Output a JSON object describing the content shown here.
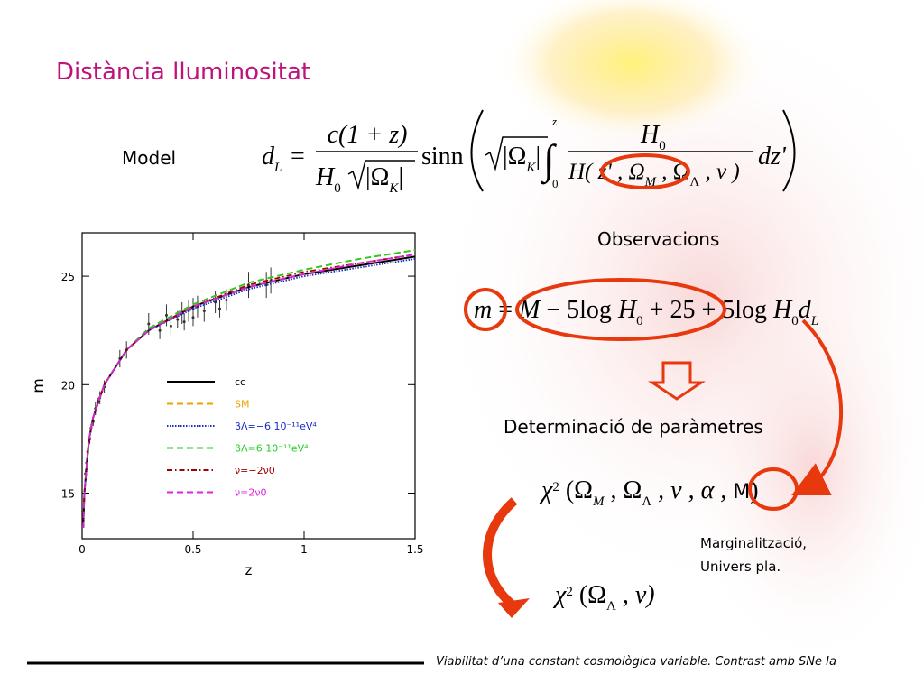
{
  "title": "Distància lluminositat",
  "model_label": "Model",
  "model_formula": {
    "lhs": "d",
    "lhs_sub": "L",
    "equals": "=",
    "num": "c(1 + z)",
    "den": "H",
    "den_sub": "0",
    "den_root": "|Ω",
    "den_root_sub": "K",
    "den_root_end": "|",
    "func": "sinn",
    "root": "|Ω",
    "root_sub": "K",
    "root_end": "|",
    "integral": "∫",
    "upper": "z",
    "lower": "0",
    "inner_num": "H",
    "inner_num_sub": "0",
    "inner_den": "H( z' , Ω",
    "inner_den_sub1": "M",
    "inner_den_mid": " , Ω",
    "inner_den_sub2": "Λ",
    "inner_den_end": " , ν )",
    "differential": "dz'"
  },
  "observations_label": "Observacions",
  "magnitude_formula": {
    "a": "m",
    "b": " = ",
    "c": "M",
    "d": " − 5log ",
    "e": "H",
    "e_sub": "0",
    "f": " + 25 + 5log ",
    "g": "H",
    "g_sub": "0",
    "h": "d",
    "h_sub": "L"
  },
  "parameters_label": "Determinació de paràmetres",
  "chi_formula": {
    "chi": "χ",
    "sup": "2",
    "a": " (Ω",
    "a_sub": "M",
    "b": " , Ω",
    "b_sub": "Λ",
    "c": " , ν , α , ",
    "m": "M",
    "end": ")"
  },
  "marginalization_note": [
    "Marginalització,",
    "Univers pla."
  ],
  "reduced_chi_formula": {
    "chi": "χ",
    "sup": "2",
    "a": " (Ω",
    "a_sub": "Λ",
    "b": " , ν)"
  },
  "plot": {
    "xlabel": "z",
    "ylabel": "m",
    "xlim": [
      0,
      1.5
    ],
    "ylim": [
      12.9,
      27
    ],
    "xticks": [
      0,
      0.5,
      1,
      1.5
    ],
    "yticks": [
      15,
      20,
      25
    ],
    "x": [
      0.005,
      0.01,
      0.03,
      0.05,
      0.1,
      0.2,
      0.3,
      0.5,
      0.75,
      1.0,
      1.25,
      1.5
    ],
    "series": [
      {
        "name": "cc",
        "color": "#000000",
        "dash": "solid",
        "values": [
          13.4,
          15.0,
          17.4,
          18.5,
          20.0,
          21.6,
          22.5,
          23.6,
          24.5,
          25.1,
          25.5,
          25.9
        ]
      },
      {
        "name": "SM",
        "color": "#f0a000",
        "dash": "dashed",
        "values": [
          13.4,
          15.0,
          17.4,
          18.5,
          20.0,
          21.6,
          22.6,
          23.7,
          24.7,
          25.3,
          25.8,
          26.2
        ]
      },
      {
        "name": "βΛ=−6  10⁻¹¹eV⁴",
        "color": "#1a2cc0",
        "dash": "dotted",
        "values": [
          13.4,
          15.0,
          17.4,
          18.5,
          20.0,
          21.6,
          22.5,
          23.5,
          24.4,
          25.0,
          25.4,
          25.8
        ]
      },
      {
        "name": "βΛ=6  10⁻¹¹eV⁴",
        "color": "#22cc22",
        "dash": "dashed",
        "values": [
          13.4,
          15.0,
          17.4,
          18.5,
          20.0,
          21.6,
          22.6,
          23.7,
          24.7,
          25.3,
          25.8,
          26.2
        ]
      },
      {
        "name": "ν=−2ν0",
        "color": "#a00000",
        "dash": "dashdot",
        "values": [
          13.4,
          15.0,
          17.4,
          18.5,
          20.0,
          21.6,
          22.5,
          23.6,
          24.6,
          25.2,
          25.6,
          26.0
        ]
      },
      {
        "name": "ν=2ν0",
        "color": "#e020e0",
        "dash": "dashed",
        "values": [
          13.4,
          15.0,
          17.4,
          18.5,
          20.0,
          21.6,
          22.5,
          23.6,
          24.5,
          25.1,
          25.6,
          26.0
        ]
      }
    ],
    "points": {
      "x": [
        0.015,
        0.02,
        0.025,
        0.03,
        0.035,
        0.04,
        0.05,
        0.06,
        0.07,
        0.08,
        0.1,
        0.17,
        0.2,
        0.3,
        0.35,
        0.38,
        0.4,
        0.43,
        0.45,
        0.46,
        0.48,
        0.5,
        0.5,
        0.52,
        0.55,
        0.6,
        0.62,
        0.65,
        0.75,
        0.83,
        0.85
      ],
      "y": [
        15.9,
        16.4,
        16.9,
        17.3,
        17.5,
        18.0,
        18.3,
        18.9,
        19.2,
        19.4,
        19.9,
        21.2,
        21.6,
        22.8,
        22.5,
        23.2,
        22.7,
        23.0,
        23.3,
        22.9,
        23.4,
        23.5,
        23.1,
        23.6,
        23.4,
        23.8,
        23.5,
        23.9,
        24.6,
        24.6,
        24.8
      ],
      "err": [
        0.2,
        0.2,
        0.2,
        0.2,
        0.2,
        0.2,
        0.2,
        0.3,
        0.2,
        0.3,
        0.3,
        0.4,
        0.4,
        0.5,
        0.4,
        0.5,
        0.4,
        0.4,
        0.5,
        0.4,
        0.5,
        0.5,
        0.4,
        0.5,
        0.5,
        0.5,
        0.4,
        0.5,
        0.6,
        0.6,
        0.6
      ]
    },
    "legend_colors": true
  },
  "footer": "Viabilitat d’una constant cosmològica variable. Contrast amb SNe Ia"
}
